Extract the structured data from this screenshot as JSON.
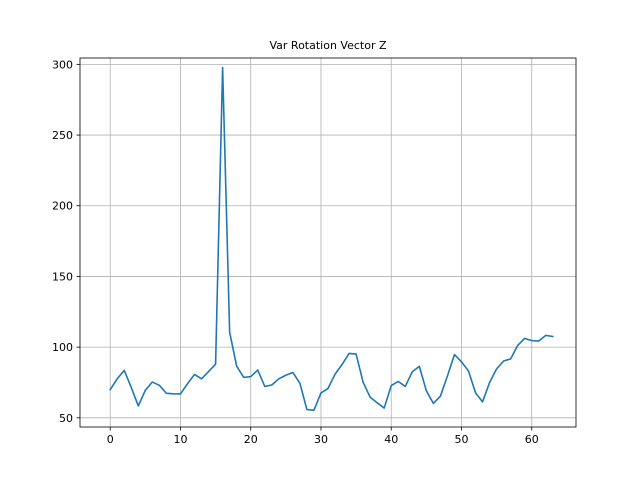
{
  "chart_data": {
    "type": "line",
    "title": "Var Rotation Vector Z",
    "xlabel": "",
    "ylabel": "",
    "xlim": [
      -4.3,
      66.3
    ],
    "ylim": [
      43.5,
      304.5
    ],
    "x_ticks": [
      0,
      10,
      20,
      30,
      40,
      50,
      60
    ],
    "y_ticks": [
      50,
      100,
      150,
      200,
      250,
      300
    ],
    "grid": true,
    "colors": {
      "line": "#1f77b4",
      "grid": "#b0b0b0",
      "axes": "#000000"
    },
    "series": [
      {
        "x": [
          0,
          1,
          2,
          3,
          4,
          5,
          6,
          7,
          8,
          9,
          10,
          11,
          12,
          13,
          14,
          15,
          16,
          17,
          18,
          19,
          20,
          21,
          22,
          23,
          24,
          25,
          26,
          27,
          28,
          29,
          30,
          31,
          32,
          33,
          34,
          35,
          36,
          37,
          38,
          39,
          40,
          41,
          42,
          43,
          44,
          45,
          46,
          47,
          48,
          49,
          50,
          51,
          52,
          53,
          54,
          55,
          56,
          57,
          58,
          59,
          60,
          61,
          62,
          63
        ],
        "values": [
          69.9,
          77.6,
          83.6,
          71.4,
          58.4,
          69.5,
          75.3,
          73.0,
          67.3,
          67.0,
          66.9,
          74.1,
          80.7,
          77.6,
          82.7,
          87.9,
          297.7,
          110.5,
          86.5,
          78.6,
          79.1,
          83.8,
          72.2,
          73.2,
          77.6,
          80.1,
          82.1,
          74.4,
          55.8,
          55.4,
          67.6,
          70.8,
          80.8,
          87.7,
          95.5,
          95.1,
          75.1,
          64.6,
          60.6,
          56.9,
          72.8,
          75.7,
          72.2,
          82.6,
          86.4,
          69.1,
          60.2,
          65.3,
          79.6,
          94.7,
          89.6,
          83.1,
          67.6,
          61.3,
          75.0,
          84.6,
          90.2,
          91.7,
          101.2,
          106.2,
          104.6,
          104.3,
          108.3,
          107.5
        ]
      }
    ]
  }
}
